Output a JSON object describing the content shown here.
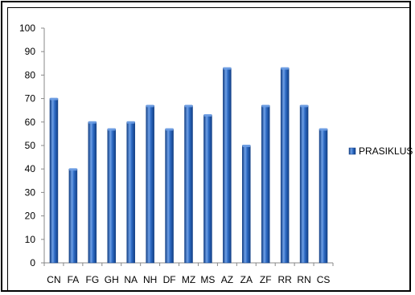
{
  "chart_data": {
    "type": "bar",
    "categories": [
      "CN",
      "FA",
      "FG",
      "GH",
      "NA",
      "NH",
      "DF",
      "MZ",
      "MS",
      "AZ",
      "ZA",
      "ZF",
      "RR",
      "RN",
      "CS"
    ],
    "series": [
      {
        "name": "PRASIKLUS",
        "values": [
          70,
          40,
          60,
          57,
          60,
          67,
          57,
          67,
          63,
          83,
          50,
          67,
          83,
          67,
          57
        ]
      }
    ],
    "ylim": [
      0,
      100
    ],
    "yticks": [
      0,
      10,
      20,
      30,
      40,
      50,
      60,
      70,
      80,
      90,
      100
    ],
    "grid": false,
    "legend_position": "right",
    "colors": {
      "bar": "#2e6bc4",
      "bar_dark": "#123f85",
      "bar_light": "#6fa0e6",
      "axis": "#888888"
    }
  }
}
